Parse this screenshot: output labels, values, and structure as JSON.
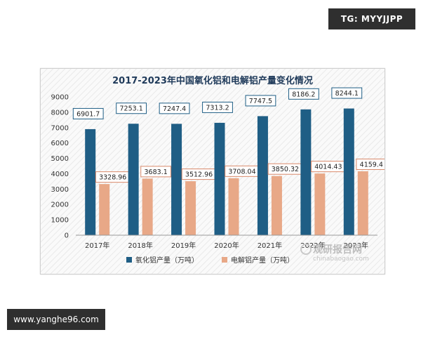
{
  "top_tag": "TG: MYYJJPP",
  "bottom_tag": "www.yanghe96.com",
  "watermark": {
    "cn": "观研报告网",
    "en": "chinabaogao.com"
  },
  "colors": {
    "series1": "#1f5e85",
    "series2": "#e8a887",
    "label1_border": "#1f5e85",
    "label2_border": "#d9896a"
  },
  "chart_data": {
    "type": "bar",
    "title": "2017-2023年中国氧化铝和电解铝产量变化情况",
    "categories": [
      "2017年",
      "2018年",
      "2019年",
      "2020年",
      "2021年",
      "2022年",
      "2023年"
    ],
    "series": [
      {
        "name": "氧化铝产量（万吨）",
        "values": [
          6901.7,
          7253.1,
          7247.4,
          7313.2,
          7747.5,
          8186.2,
          8244.1
        ],
        "labels": [
          "6901.7",
          "7253.1",
          "7247.4",
          "7313.2",
          "7747.5",
          "8186.2",
          "8244.1"
        ]
      },
      {
        "name": "电解铝产量（万吨）",
        "values": [
          3328.96,
          3683.1,
          3512.96,
          3708.04,
          3850.32,
          4014.43,
          4159.4
        ],
        "labels": [
          "3328.96",
          "3683.1",
          "3512.96",
          "3708.04",
          "3850.32",
          "4014.43",
          "4159.4"
        ]
      }
    ],
    "yticks": [
      "0",
      "1000",
      "2000",
      "3000",
      "4000",
      "5000",
      "6000",
      "7000",
      "8000",
      "9000"
    ],
    "ylim": [
      0,
      9000
    ],
    "legend_position": "bottom",
    "grid": false
  }
}
